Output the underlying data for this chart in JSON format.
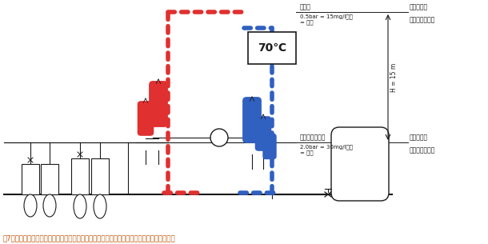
{
  "title_caption": "図7：従来型のエアセパレータとダイアフラム式膨張タンクを装備した暖房システムの概要図",
  "temp_label": "70℃",
  "top_label": "最上部",
  "top_pressure_line1": "0.5bar = 15mg/l窒素",
  "top_pressure_line2": "= 飽和",
  "top_right1": "低い圧力、",
  "top_right2": "低いガス溶解度",
  "bottom_label": "エアセパレータ",
  "bottom_pressure_line1": "2.0bar = 30mg/l窒素",
  "bottom_pressure_line2": "= 飽和",
  "bottom_right1": "高い圧力、",
  "bottom_right2": "高いガス溶解度",
  "height_label": "H = 15 m",
  "red_color": "#e03030",
  "blue_color": "#3060c0",
  "line_color": "#1a1a1a",
  "bg_color": "#ffffff",
  "caption_color": "#c05000",
  "annot_color": "#808080"
}
